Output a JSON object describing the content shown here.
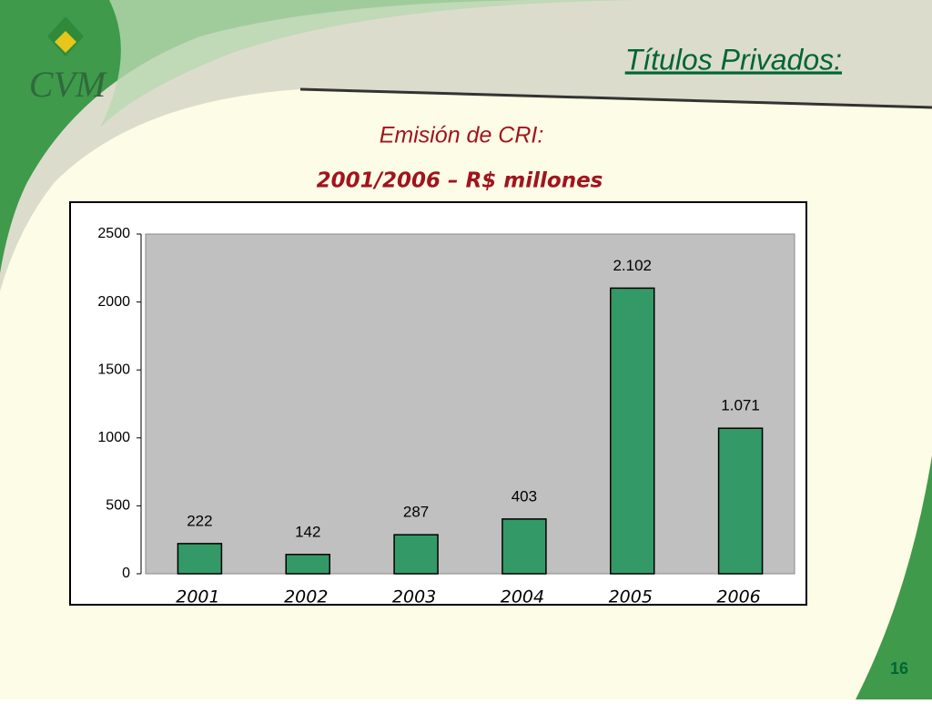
{
  "header": {
    "logo": "CVM",
    "title": "Títulos Privados:"
  },
  "chart_data": {
    "type": "bar",
    "title": "Emisión de CRI:",
    "subtitle": "2001/2006 – R$ millones",
    "categories": [
      "2001",
      "2002",
      "2003",
      "2004",
      "2005",
      "2006"
    ],
    "values": [
      222,
      142,
      287,
      403,
      2102,
      1071
    ],
    "value_labels": [
      "222",
      "142",
      "287",
      "403",
      "2.102",
      "1.071"
    ],
    "color": "#339966",
    "ylim": [
      0,
      2500
    ],
    "yticks": [
      0,
      500,
      1000,
      1500,
      2000,
      2500
    ],
    "grid": false
  },
  "page_number": "16"
}
